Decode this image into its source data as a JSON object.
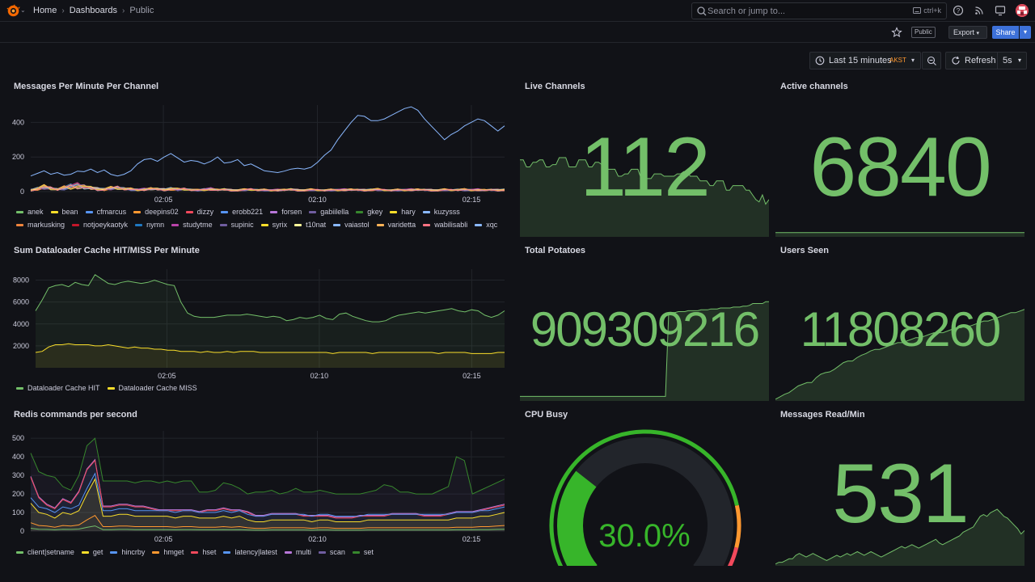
{
  "breadcrumb": {
    "home": "Home",
    "dashboards": "Dashboards",
    "current": "Public"
  },
  "search": {
    "placeholder": "Search or jump to...",
    "shortcut": "ctrl+k"
  },
  "toolbar": {
    "public_tag": "Public",
    "export_label": "Export",
    "share_label": "Share"
  },
  "time": {
    "range": "Last 15 minutes",
    "timezone": "AKST",
    "refresh_label": "Refresh",
    "refresh_interval": "5s"
  },
  "colors": {
    "green": "#73bf69",
    "background": "#111217",
    "panel_border": "#24262c",
    "accent_blue": "#3d71d9"
  },
  "panels": {
    "messages": {
      "title": "Messages Per Minute Per Channel",
      "chart_data": {
        "type": "line",
        "x_ticks": [
          "02:05",
          "02:10",
          "02:15"
        ],
        "y_ticks": [
          0,
          200,
          400
        ],
        "ylim": [
          0,
          500
        ],
        "series": [
          {
            "name": "anek",
            "color": "#73bf69"
          },
          {
            "name": "bean",
            "color": "#fade2a"
          },
          {
            "name": "cfmarcus",
            "color": "#5794f2"
          },
          {
            "name": "deepins02",
            "color": "#ff9830"
          },
          {
            "name": "dizzy",
            "color": "#f2495c"
          },
          {
            "name": "erobb221",
            "color": "#5794f2"
          },
          {
            "name": "forsen",
            "color": "#b877d9"
          },
          {
            "name": "gabiilella",
            "color": "#705da0"
          },
          {
            "name": "gkey",
            "color": "#37872d"
          },
          {
            "name": "hary",
            "color": "#fade2a"
          },
          {
            "name": "kuzysss",
            "color": "#8ab8ff"
          },
          {
            "name": "markusking",
            "color": "#ef843c"
          },
          {
            "name": "notjoeykaotyk",
            "color": "#c4162a"
          },
          {
            "name": "nymn",
            "color": "#1f78c1"
          },
          {
            "name": "studytme",
            "color": "#ba43a9"
          },
          {
            "name": "supinic",
            "color": "#705da0"
          },
          {
            "name": "syrix",
            "color": "#fade2a"
          },
          {
            "name": "t10nat",
            "color": "#fff899"
          },
          {
            "name": "vaiastol",
            "color": "#8ab8ff"
          },
          {
            "name": "varidetta",
            "color": "#ffb357"
          },
          {
            "name": "wabilisabli",
            "color": "#ff7383"
          },
          {
            "name": "xqc",
            "color": "#8ab8ff"
          }
        ],
        "xqc_values": [
          90,
          105,
          120,
          100,
          110,
          95,
          100,
          118,
          115,
          130,
          110,
          125,
          100,
          90,
          100,
          120,
          160,
          185,
          190,
          175,
          200,
          220,
          195,
          170,
          180,
          175,
          160,
          175,
          200,
          165,
          170,
          185,
          150,
          160,
          140,
          120,
          115,
          110,
          118,
          130,
          135,
          130,
          140,
          170,
          210,
          240,
          300,
          350,
          400,
          440,
          435,
          410,
          410,
          420,
          440,
          460,
          480,
          490,
          470,
          420,
          380,
          340,
          300,
          330,
          350,
          380,
          400,
          420,
          410,
          380,
          350,
          380
        ],
        "other_values": [
          10,
          20,
          35,
          25,
          15,
          30,
          40,
          45,
          38,
          28,
          20,
          15,
          25,
          30,
          20,
          18,
          12,
          15,
          22,
          18,
          14,
          20,
          15,
          18,
          12,
          10,
          14,
          18,
          12,
          15,
          10,
          8,
          12,
          15,
          10,
          12,
          8,
          10,
          12,
          15,
          10,
          8,
          12,
          10,
          8,
          12,
          10,
          12,
          14,
          12,
          10,
          12,
          14,
          10,
          8,
          12,
          10,
          12,
          14,
          12,
          10,
          8,
          12,
          10,
          12,
          14,
          10,
          12,
          10,
          12,
          10,
          12
        ]
      }
    },
    "live_channels": {
      "title": "Live Channels",
      "value": "112",
      "spark": [
        33,
        33,
        30,
        30,
        32,
        32,
        33,
        33,
        30,
        30,
        31,
        31,
        34,
        34,
        34,
        30,
        30,
        30,
        33,
        33,
        33,
        30,
        30,
        32,
        32,
        31,
        31,
        29,
        29,
        29,
        26,
        26,
        27,
        27,
        29,
        29,
        29,
        25,
        25,
        25,
        25,
        27,
        27,
        27,
        26,
        26,
        26,
        26,
        27,
        27,
        28,
        28,
        26,
        26,
        26,
        24,
        24,
        24,
        22,
        22,
        24,
        24,
        24,
        20,
        20,
        22,
        22,
        22,
        22,
        20,
        20,
        18,
        16,
        15,
        18,
        14,
        16
      ]
    },
    "active_channels": {
      "title": "Active channels",
      "value": "6840",
      "spark": [
        30,
        30,
        30,
        30,
        30,
        30,
        30,
        30,
        30,
        30,
        30,
        30,
        30,
        30,
        30,
        30,
        30,
        30,
        30,
        30,
        30,
        30,
        30,
        30,
        30,
        30,
        30,
        30,
        30,
        30,
        30,
        30,
        30,
        30
      ]
    },
    "dataloader": {
      "title": "Sum Dataloader Cache HIT/MISS Per Minute",
      "chart_data": {
        "type": "area",
        "x_ticks": [
          "02:05",
          "02:10",
          "02:15"
        ],
        "y_ticks": [
          2000,
          4000,
          6000,
          8000
        ],
        "ylim": [
          0,
          9000
        ],
        "series": [
          {
            "name": "Dataloader Cache HIT",
            "color": "#73bf69",
            "values": [
              5200,
              6200,
              7300,
              7500,
              7600,
              7400,
              7800,
              7600,
              7500,
              8500,
              8100,
              7700,
              7600,
              7800,
              7900,
              7800,
              7700,
              7800,
              8000,
              7800,
              7600,
              7500,
              6000,
              5000,
              4700,
              4600,
              4600,
              4600,
              4700,
              4800,
              4800,
              4800,
              4900,
              4800,
              4700,
              4600,
              4700,
              4600,
              4300,
              4400,
              4600,
              4500,
              4600,
              4800,
              4500,
              4400,
              4900,
              5000,
              4700,
              4500,
              4300,
              4200,
              4200,
              4300,
              4600,
              4800,
              4900,
              5000,
              5100,
              5000,
              5100,
              5200,
              5300,
              5400,
              5200,
              5100,
              5300,
              5200,
              4800,
              4600,
              4800,
              5200
            ]
          },
          {
            "name": "Dataloader Cache MISS",
            "color": "#fade2a",
            "values": [
              1400,
              1500,
              1900,
              2100,
              2100,
              2200,
              2100,
              2100,
              2100,
              2000,
              2000,
              2100,
              2000,
              1900,
              1800,
              1900,
              1800,
              1800,
              1700,
              1700,
              1600,
              1600,
              1500,
              1500,
              1500,
              1400,
              1500,
              1400,
              1400,
              1500,
              1400,
              1500,
              1500,
              1500,
              1400,
              1400,
              1400,
              1400,
              1400,
              1400,
              1400,
              1400,
              1400,
              1400,
              1400,
              1300,
              1400,
              1400,
              1400,
              1400,
              1400,
              1300,
              1400,
              1400,
              1400,
              1400,
              1400,
              1400,
              1400,
              1400,
              1400,
              1300,
              1400,
              1400,
              1400,
              1400,
              1300,
              1300,
              1300,
              1300,
              1400,
              1400
            ]
          }
        ]
      }
    },
    "total_potatoes": {
      "title": "Total Potatoes",
      "value": "909309216",
      "spark": [
        5,
        5,
        5,
        5,
        5,
        5,
        5,
        5,
        5,
        5,
        5,
        5,
        5,
        5,
        5,
        5,
        5,
        5,
        5,
        5,
        5,
        5,
        5,
        5,
        5,
        5,
        5,
        5,
        5,
        5,
        5,
        5,
        5,
        5,
        5,
        5,
        5,
        5,
        5,
        5,
        5,
        5,
        5,
        5,
        5,
        5,
        98,
        98,
        98,
        99,
        99,
        99,
        100,
        100,
        100,
        100,
        101,
        101,
        101,
        102,
        102,
        102,
        103,
        103,
        103,
        103,
        104,
        104,
        104,
        105,
        105,
        106,
        108,
        108,
        108,
        108,
        110,
        110
      ]
    },
    "users_seen": {
      "title": "Users Seen",
      "value": "11808260",
      "spark": [
        2,
        5,
        8,
        10,
        14,
        18,
        20,
        22,
        22,
        28,
        32,
        34,
        35,
        38,
        42,
        46,
        48,
        48,
        52,
        55,
        57,
        60,
        62,
        62,
        64,
        66,
        68,
        70,
        70,
        72,
        74,
        76,
        76,
        78,
        80,
        82,
        82,
        82,
        84,
        86,
        88,
        88,
        90,
        90,
        92,
        94,
        96,
        96,
        98,
        100,
        102,
        104,
        106,
        106,
        108,
        110
      ]
    },
    "redis": {
      "title": "Redis commands per second",
      "chart_data": {
        "type": "area",
        "x_ticks": [
          "02:05",
          "02:10",
          "02:15"
        ],
        "y_ticks": [
          0,
          100,
          200,
          300,
          400,
          500
        ],
        "ylim": [
          0,
          540
        ],
        "series": [
          {
            "name": "client|setname",
            "color": "#73bf69"
          },
          {
            "name": "get",
            "color": "#fade2a"
          },
          {
            "name": "hincrby",
            "color": "#5794f2"
          },
          {
            "name": "hmget",
            "color": "#ff9830"
          },
          {
            "name": "hset",
            "color": "#f2495c"
          },
          {
            "name": "latency|latest",
            "color": "#5794f2"
          },
          {
            "name": "multi",
            "color": "#b877d9"
          },
          {
            "name": "scan",
            "color": "#705da0"
          },
          {
            "name": "set",
            "color": "#37872d"
          }
        ],
        "top_values": [
          420,
          320,
          300,
          290,
          240,
          220,
          300,
          460,
          500,
          270,
          270,
          270,
          270,
          260,
          270,
          270,
          260,
          270,
          260,
          270,
          270,
          210,
          210,
          220,
          260,
          250,
          230,
          200,
          210,
          210,
          220,
          200,
          210,
          230,
          210,
          210,
          220,
          210,
          200,
          200,
          200,
          200,
          210,
          220,
          250,
          240,
          210,
          210,
          200,
          200,
          200,
          220,
          240,
          400,
          380,
          200,
          220,
          240,
          260,
          280
        ],
        "mid_values": [
          290,
          180,
          140,
          120,
          170,
          150,
          210,
          330,
          380,
          130,
          130,
          140,
          140,
          130,
          130,
          120,
          110,
          110,
          110,
          110,
          110,
          100,
          110,
          110,
          120,
          110,
          110,
          100,
          80,
          80,
          90,
          90,
          90,
          90,
          80,
          80,
          80,
          80,
          70,
          70,
          70,
          80,
          80,
          80,
          80,
          90,
          90,
          90,
          90,
          80,
          80,
          80,
          90,
          100,
          100,
          100,
          110,
          120,
          130,
          140
        ],
        "low_values": [
          150,
          100,
          90,
          70,
          100,
          90,
          110,
          200,
          280,
          80,
          80,
          90,
          90,
          80,
          80,
          80,
          80,
          80,
          70,
          80,
          80,
          70,
          70,
          70,
          80,
          70,
          80,
          60,
          50,
          50,
          60,
          60,
          60,
          60,
          60,
          50,
          60,
          60,
          50,
          50,
          50,
          50,
          60,
          60,
          60,
          60,
          60,
          60,
          60,
          60,
          60,
          60,
          60,
          70,
          70,
          70,
          80,
          80,
          90,
          100
        ]
      }
    },
    "cpu_busy": {
      "title": "CPU Busy",
      "value": "30.0%",
      "fraction": 0.3
    },
    "messages_read": {
      "title": "Messages Read/Min",
      "value": "531",
      "spark": [
        2,
        4,
        4,
        6,
        8,
        8,
        12,
        14,
        12,
        10,
        12,
        14,
        12,
        10,
        8,
        6,
        8,
        10,
        12,
        10,
        12,
        14,
        12,
        14,
        16,
        14,
        12,
        14,
        16,
        14,
        12,
        10,
        12,
        14,
        16,
        18,
        20,
        22,
        20,
        22,
        24,
        22,
        20,
        22,
        24,
        26,
        28,
        30,
        26,
        24,
        26,
        28,
        30,
        32,
        34,
        38,
        40,
        42,
        44,
        50,
        56,
        58,
        56,
        60,
        62,
        64,
        60,
        56,
        54,
        50,
        46,
        42,
        36,
        40
      ]
    }
  }
}
